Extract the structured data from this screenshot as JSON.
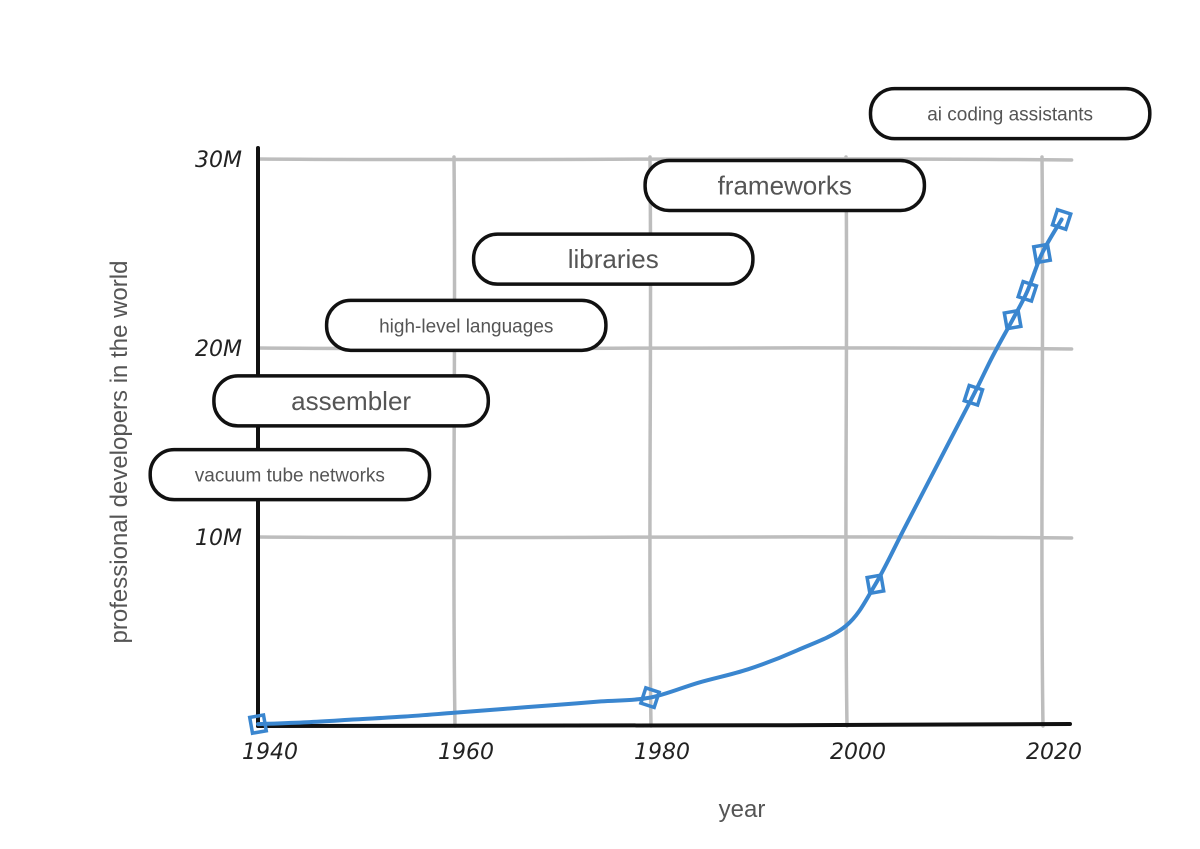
{
  "chart_data": {
    "type": "line",
    "title": "",
    "xlabel": "year",
    "ylabel": "professional developers in the world",
    "xlim": [
      1940,
      2022
    ],
    "ylim": [
      0,
      30
    ],
    "x_ticks": [
      {
        "value": 1940,
        "label": "1940"
      },
      {
        "value": 1960,
        "label": "1960"
      },
      {
        "value": 1980,
        "label": "1980"
      },
      {
        "value": 2000,
        "label": "2000"
      },
      {
        "value": 2020,
        "label": "2020"
      }
    ],
    "y_ticks": [
      {
        "value": 10,
        "label": "10M"
      },
      {
        "value": 20,
        "label": "20M"
      },
      {
        "value": 30,
        "label": "30M"
      }
    ],
    "grid": true,
    "series": [
      {
        "color": "#3a86cf",
        "x": [
          1940,
          1980,
          2003,
          2013,
          2017,
          2018.5,
          2020,
          2022
        ],
        "y": [
          0.1,
          1.5,
          7.5,
          17.5,
          21.5,
          23,
          25,
          26.8
        ]
      }
    ],
    "curve": [
      [
        1940,
        0.1
      ],
      [
        1945,
        0.2
      ],
      [
        1950,
        0.35
      ],
      [
        1955,
        0.5
      ],
      [
        1960,
        0.7
      ],
      [
        1965,
        0.9
      ],
      [
        1970,
        1.1
      ],
      [
        1975,
        1.3
      ],
      [
        1980,
        1.5
      ],
      [
        1985,
        2.3
      ],
      [
        1990,
        3.0
      ],
      [
        1995,
        4.0
      ],
      [
        2000,
        5.3
      ],
      [
        2003,
        7.5
      ],
      [
        2006,
        10.5
      ],
      [
        2010,
        14.5
      ],
      [
        2013,
        17.5
      ],
      [
        2015,
        19.6
      ],
      [
        2017,
        21.5
      ],
      [
        2018.5,
        23.0
      ],
      [
        2020,
        25.0
      ],
      [
        2022,
        26.8
      ]
    ],
    "annotations": [
      {
        "text": "vacuum tube networks",
        "x_start": 1929,
        "y": 13.3,
        "x_end": 1957.5
      },
      {
        "text": "assembler",
        "x_start": 1935.5,
        "y": 17.2,
        "x_end": 1963.5
      },
      {
        "text": "high-level languages",
        "x_start": 1947,
        "y": 21.2,
        "x_end": 1975.5
      },
      {
        "text": "libraries",
        "x_start": 1962,
        "y": 24.7,
        "x_end": 1990.5
      },
      {
        "text": "frameworks",
        "x_start": 1979.5,
        "y": 28.6,
        "x_end": 2008
      },
      {
        "text": "ai coding assistants",
        "x_start": 2002.5,
        "y": 32.4,
        "x_end": 2031
      }
    ]
  }
}
